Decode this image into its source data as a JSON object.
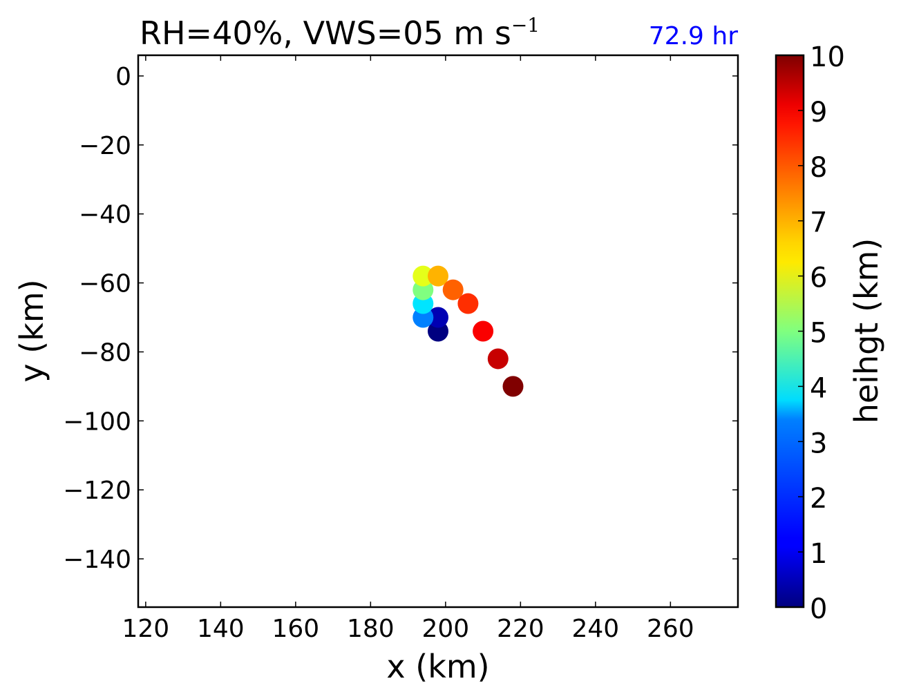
{
  "chart_data": {
    "type": "scatter",
    "title": "RH=40%, VWS=05 m s",
    "title_superscript": "−1",
    "annotation": "72.9 hr",
    "annotation_color": "#0000ff",
    "xlabel": "x (km)",
    "ylabel": "y (km)",
    "xlim": [
      118,
      278
    ],
    "ylim": [
      -154,
      6
    ],
    "xticks": [
      120,
      140,
      160,
      180,
      200,
      220,
      240,
      260
    ],
    "yticks": [
      0,
      -20,
      -40,
      -60,
      -80,
      -100,
      -120,
      -140
    ],
    "grid": false,
    "colorbar": {
      "label": "heihgt (km)",
      "colormap": "jet",
      "range": [
        0,
        10
      ],
      "ticks": [
        0,
        1,
        2,
        3,
        4,
        5,
        6,
        7,
        8,
        9,
        10
      ]
    },
    "points": [
      {
        "x": 198,
        "y": -74,
        "z": 0.0
      },
      {
        "x": 198,
        "y": -70,
        "z": 0.5
      },
      {
        "x": 194,
        "y": -70,
        "z": 2.5
      },
      {
        "x": 194,
        "y": -66,
        "z": 3.5
      },
      {
        "x": 194,
        "y": -62,
        "z": 5.0
      },
      {
        "x": 194,
        "y": -58,
        "z": 6.0
      },
      {
        "x": 198,
        "y": -58,
        "z": 7.0
      },
      {
        "x": 202,
        "y": -62,
        "z": 7.8
      },
      {
        "x": 206,
        "y": -66,
        "z": 8.3
      },
      {
        "x": 210,
        "y": -74,
        "z": 8.8
      },
      {
        "x": 214,
        "y": -82,
        "z": 9.3
      },
      {
        "x": 218,
        "y": -90,
        "z": 10.0
      }
    ]
  }
}
